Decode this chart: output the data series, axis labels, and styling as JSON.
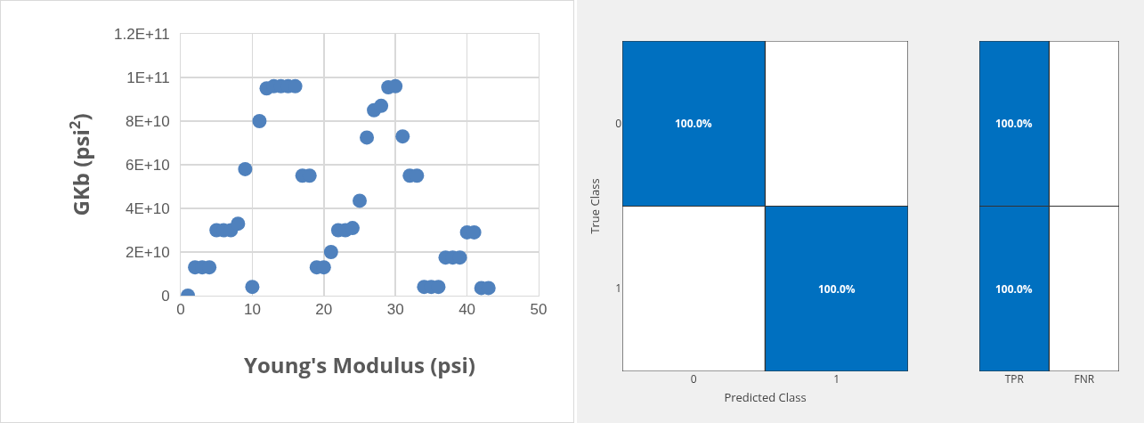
{
  "chart_data": [
    {
      "type": "scatter",
      "xlabel": "Young's Modulus (psi)",
      "ylabel": "GKb (psi$^{2}$)",
      "color": "#4f81bd",
      "marker": "circle",
      "grid": true,
      "x": [
        1,
        2,
        3,
        4,
        5,
        6,
        7,
        8,
        9,
        10,
        11,
        12,
        13,
        14,
        15,
        16,
        17,
        18,
        19,
        20,
        21,
        22,
        23,
        24,
        25,
        26,
        27,
        28,
        29,
        30,
        31,
        32,
        33,
        34,
        35,
        36,
        37,
        38,
        39,
        40,
        41,
        42,
        43
      ],
      "values": [
        0,
        13000000000.0,
        13000000000.0,
        13000000000.0,
        30000000000.0,
        30000000000.0,
        30000000000.0,
        33000000000.0,
        58000000000.0,
        4000000000.0,
        80000000000.0,
        95000000000.0,
        96000000000.0,
        96000000000.0,
        96000000000.0,
        96000000000.0,
        55000000000.0,
        55000000000.0,
        13000000000.0,
        13000000000.0,
        20000000000.0,
        30000000000.0,
        30000000000.0,
        31000000000.0,
        43500000000.0,
        72500000000.0,
        85000000000.0,
        87000000000.0,
        95500000000.0,
        96000000000.0,
        73000000000.0,
        55000000000.0,
        55000000000.0,
        4000000000.0,
        4000000000.0,
        4000000000.0,
        17500000000.0,
        17500000000.0,
        17500000000.0,
        29000000000.0,
        29000000000.0,
        3500000000.0,
        3500000000.0
      ],
      "xlim": [
        0,
        50
      ],
      "xticks": [
        0,
        10,
        20,
        30,
        40,
        50
      ],
      "ylim": [
        0,
        120000000000.0
      ],
      "yticks": [
        {
          "value": 0,
          "label": "0"
        },
        {
          "value": 20000000000.0,
          "label": "2E+10"
        },
        {
          "value": 40000000000.0,
          "label": "4E+10"
        },
        {
          "value": 60000000000.0,
          "label": "6E+10"
        },
        {
          "value": 80000000000.0,
          "label": "8E+10"
        },
        {
          "value": 100000000000.0,
          "label": "1E+11"
        },
        {
          "value": 120000000000.0,
          "label": "1.2E+11"
        }
      ]
    },
    {
      "type": "heatmap",
      "xlabel": "Predicted Class",
      "ylabel": "True Class",
      "color": "#0070c0",
      "categories": [
        "0",
        "1"
      ],
      "y_categories": [
        "0",
        "1"
      ],
      "cells": [
        [
          100,
          null
        ],
        [
          null,
          100
        ]
      ],
      "cell_labels": [
        [
          "100.0%",
          null
        ],
        [
          null,
          "100.0%"
        ]
      ]
    },
    {
      "type": "heatmap",
      "color": "#0070c0",
      "tick_labels": "x",
      "categories": [
        "TPR",
        "FNR"
      ],
      "y_categories": [
        null,
        null
      ],
      "cells": [
        [
          100,
          null
        ],
        [
          100,
          null
        ]
      ],
      "cell_labels": [
        [
          "100.0%",
          null
        ],
        [
          "100.0%",
          null
        ]
      ]
    }
  ]
}
